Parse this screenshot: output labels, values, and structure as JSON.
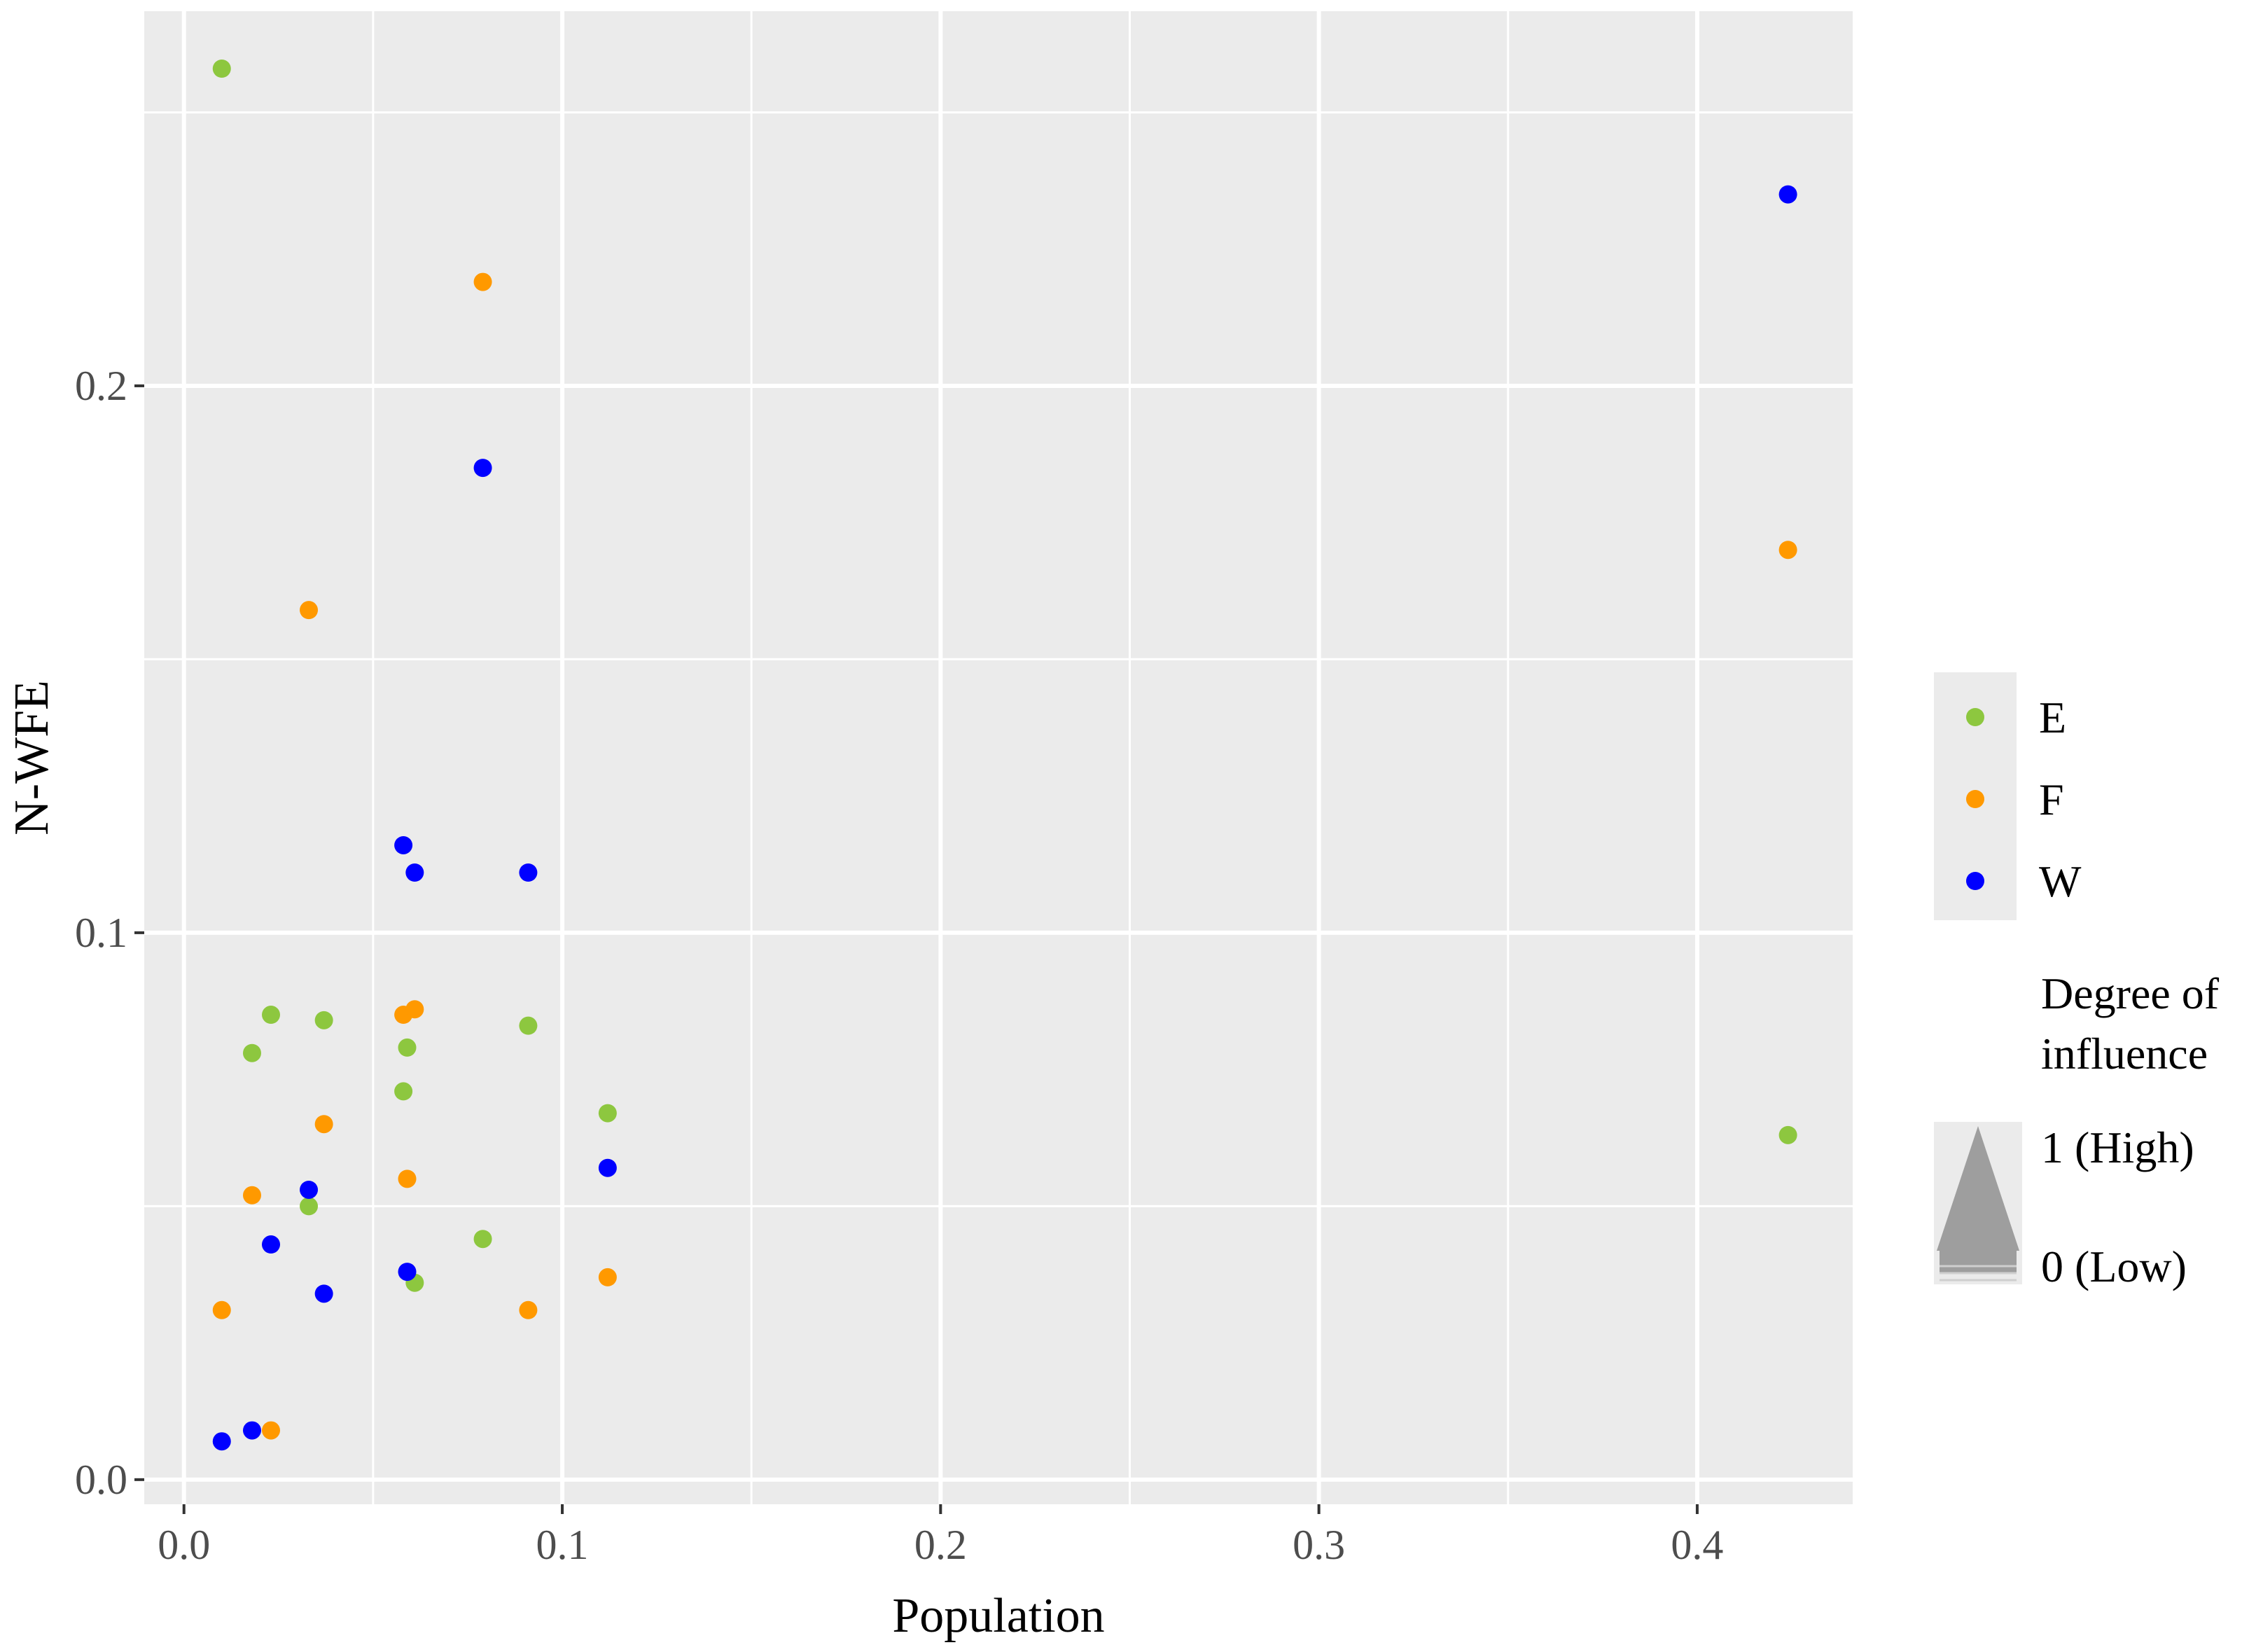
{
  "chart_data": {
    "type": "scatter",
    "title": "",
    "xlabel": "Population",
    "ylabel": "N-WFE",
    "xlim": [
      -0.0105,
      0.4411
    ],
    "ylim": [
      -0.0045,
      0.2685
    ],
    "x_ticks": [
      0.0,
      0.1,
      0.2,
      0.3,
      0.4
    ],
    "x_tick_labels": [
      "0.0",
      "0.1",
      "0.2",
      "0.3",
      "0.4"
    ],
    "y_ticks": [
      0.0,
      0.1,
      0.2
    ],
    "y_tick_labels": [
      "0.0",
      "0.1",
      "0.2"
    ],
    "grid": true,
    "legend_position": "right",
    "series": [
      {
        "name": "E",
        "color": "#8dc73f",
        "points": [
          [
            0.01,
            0.258
          ],
          [
            0.023,
            0.085
          ],
          [
            0.037,
            0.084
          ],
          [
            0.018,
            0.078
          ],
          [
            0.059,
            0.079
          ],
          [
            0.058,
            0.071
          ],
          [
            0.091,
            0.083
          ],
          [
            0.112,
            0.067
          ],
          [
            0.033,
            0.05
          ],
          [
            0.079,
            0.044
          ],
          [
            0.061,
            0.036
          ],
          [
            0.424,
            0.063
          ]
        ]
      },
      {
        "name": "F",
        "color": "#ff9900",
        "points": [
          [
            0.079,
            0.219
          ],
          [
            0.033,
            0.159
          ],
          [
            0.424,
            0.17
          ],
          [
            0.058,
            0.085
          ],
          [
            0.061,
            0.086
          ],
          [
            0.037,
            0.065
          ],
          [
            0.018,
            0.052
          ],
          [
            0.059,
            0.055
          ],
          [
            0.112,
            0.037
          ],
          [
            0.01,
            0.031
          ],
          [
            0.091,
            0.031
          ],
          [
            0.023,
            0.009
          ]
        ]
      },
      {
        "name": "W",
        "color": "#0000ff",
        "points": [
          [
            0.424,
            0.235
          ],
          [
            0.079,
            0.185
          ],
          [
            0.058,
            0.116
          ],
          [
            0.061,
            0.111
          ],
          [
            0.091,
            0.111
          ],
          [
            0.112,
            0.057
          ],
          [
            0.033,
            0.053
          ],
          [
            0.023,
            0.043
          ],
          [
            0.059,
            0.038
          ],
          [
            0.037,
            0.034
          ],
          [
            0.018,
            0.009
          ],
          [
            0.01,
            0.007
          ]
        ]
      }
    ]
  },
  "legend": {
    "entries": [
      "E",
      "F",
      "W"
    ],
    "influence_title_line1": "Degree of",
    "influence_title_line2": "influence",
    "high_label": "1 (High)",
    "low_label": "0 (Low)"
  }
}
